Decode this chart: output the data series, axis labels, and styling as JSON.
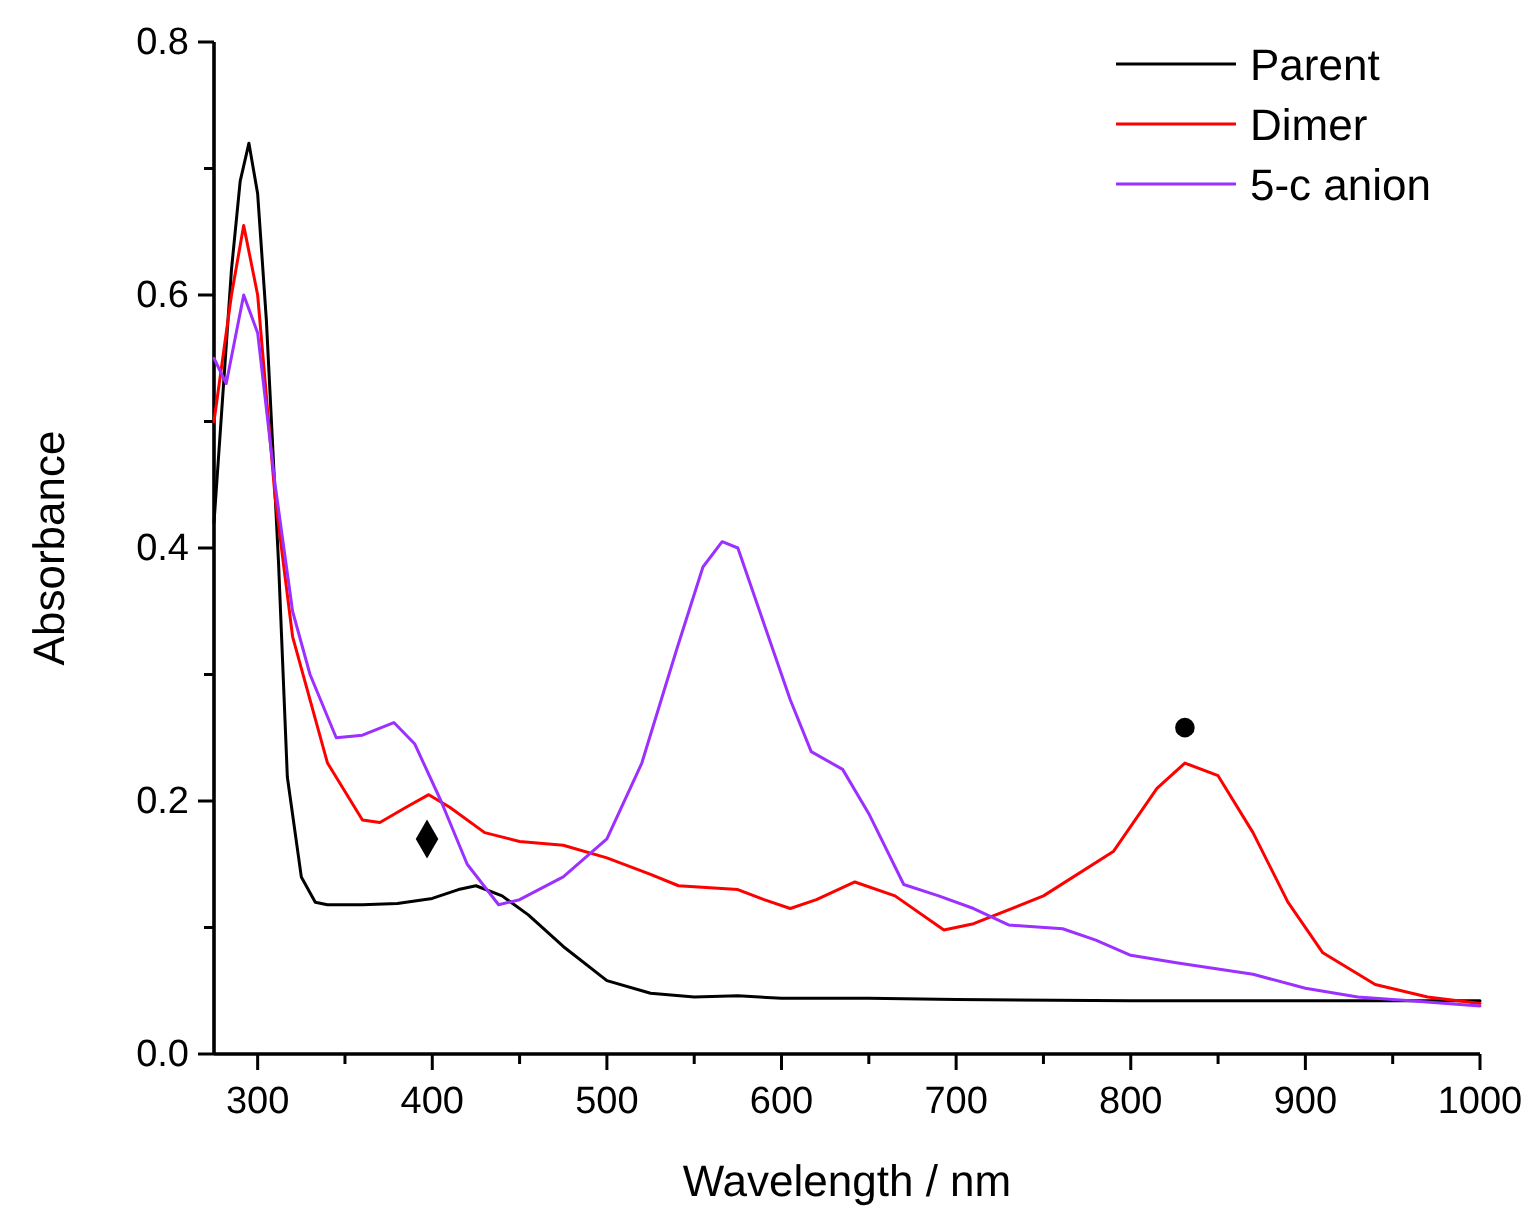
{
  "chart_data": {
    "type": "line",
    "xlabel": "Wavelength / nm",
    "ylabel": "Absorbance",
    "xlim": [
      275,
      1000
    ],
    "ylim": [
      0,
      0.8
    ],
    "xticks": [
      300,
      {
        "value": 350,
        "label": null
      },
      400,
      {
        "value": 450,
        "label": null
      },
      500,
      {
        "value": 550,
        "label": null
      },
      600,
      {
        "value": 650,
        "label": null
      },
      700,
      {
        "value": 750,
        "label": null
      },
      800,
      {
        "value": 850,
        "label": null
      },
      900,
      {
        "value": 950,
        "label": null
      },
      1000
    ],
    "yticks": [
      {
        "value": 0,
        "label": "0.0"
      },
      {
        "value": 0.1,
        "label": null
      },
      0.2,
      {
        "value": 0.3,
        "label": null
      },
      0.4,
      {
        "value": 0.5,
        "label": null
      },
      0.6,
      {
        "value": 0.7,
        "label": null
      },
      0.8
    ],
    "grid": false,
    "legend": "top right",
    "marker": "none",
    "line_style": "solid",
    "series": [
      {
        "name": "Parent",
        "color": "#000000",
        "x": [
          275,
          285,
          290,
          295,
          300,
          305,
          312,
          317,
          325,
          333,
          340,
          360,
          380,
          400,
          415,
          425,
          440,
          455,
          475,
          500,
          525,
          550,
          575,
          600,
          650,
          700,
          800,
          900,
          1000
        ],
        "values": [
          0.42,
          0.62,
          0.69,
          0.72,
          0.68,
          0.58,
          0.387,
          0.219,
          0.14,
          0.12,
          0.118,
          0.118,
          0.119,
          0.123,
          0.13,
          0.133,
          0.125,
          0.11,
          0.085,
          0.058,
          0.048,
          0.045,
          0.046,
          0.044,
          0.044,
          0.043,
          0.042,
          0.042,
          0.042
        ]
      },
      {
        "name": "Dimer",
        "color": "#ff0000",
        "x": [
          275,
          285,
          292,
          300,
          310,
          320,
          340,
          360,
          370,
          385,
          398,
          410,
          430,
          450,
          475,
          500,
          525,
          541,
          575,
          590,
          605,
          620,
          642,
          665,
          693,
          710,
          750,
          790,
          815,
          831,
          850,
          870,
          890,
          910,
          940,
          970,
          1000
        ],
        "values": [
          0.5,
          0.6,
          0.655,
          0.6,
          0.44,
          0.33,
          0.23,
          0.185,
          0.183,
          0.195,
          0.205,
          0.195,
          0.175,
          0.168,
          0.165,
          0.155,
          0.142,
          0.133,
          0.13,
          0.122,
          0.115,
          0.122,
          0.136,
          0.125,
          0.098,
          0.103,
          0.125,
          0.16,
          0.21,
          0.23,
          0.22,
          0.175,
          0.12,
          0.08,
          0.055,
          0.045,
          0.04
        ]
      },
      {
        "name": "5-c anion",
        "color": "#9b30ff",
        "x": [
          275,
          282,
          292,
          300,
          310,
          320,
          330,
          345,
          360,
          378,
          390,
          405,
          420,
          438,
          450,
          475,
          500,
          520,
          540,
          555,
          566,
          575,
          590,
          605,
          617,
          635,
          650,
          670,
          690,
          710,
          730,
          761,
          780,
          800,
          827,
          870,
          900,
          930,
          960,
          1000
        ],
        "values": [
          0.55,
          0.53,
          0.6,
          0.57,
          0.45,
          0.35,
          0.3,
          0.25,
          0.252,
          0.262,
          0.245,
          0.2,
          0.15,
          0.118,
          0.122,
          0.14,
          0.17,
          0.23,
          0.32,
          0.385,
          0.405,
          0.4,
          0.34,
          0.28,
          0.239,
          0.225,
          0.19,
          0.134,
          0.125,
          0.115,
          0.102,
          0.099,
          0.09,
          0.078,
          0.072,
          0.063,
          0.052,
          0.045,
          0.042,
          0.038
        ]
      },
      {
        "type": "scatter",
        "marker": "diamond",
        "color": "#000000",
        "x": [
          397
        ],
        "values": [
          0.17
        ]
      },
      {
        "type": "scatter",
        "marker": "circle",
        "color": "#000000",
        "x": [
          831
        ],
        "values": [
          0.258
        ]
      }
    ]
  }
}
